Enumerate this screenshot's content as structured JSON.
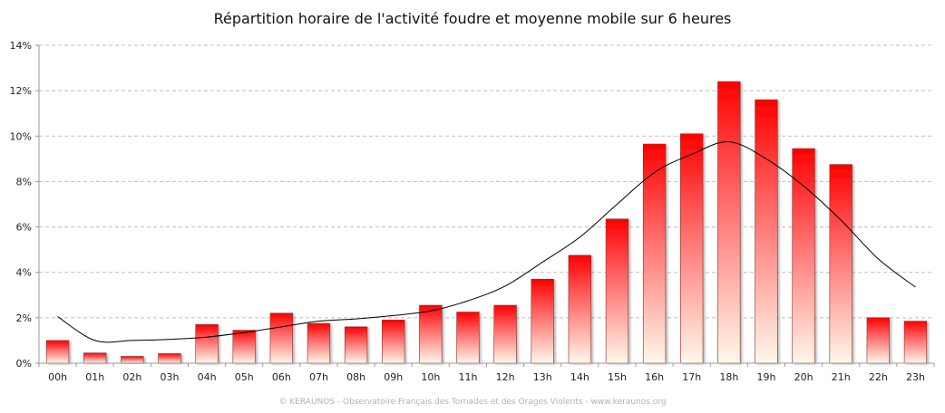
{
  "chart_data": {
    "type": "bar",
    "title": "Répartition horaire de l'activité foudre et moyenne mobile sur 6 heures",
    "xlabel": "",
    "ylabel": "",
    "categories": [
      "00h",
      "01h",
      "02h",
      "03h",
      "04h",
      "05h",
      "06h",
      "07h",
      "08h",
      "09h",
      "10h",
      "11h",
      "12h",
      "13h",
      "14h",
      "15h",
      "16h",
      "17h",
      "18h",
      "19h",
      "20h",
      "21h",
      "22h",
      "23h"
    ],
    "series": [
      {
        "type": "bar",
        "values": [
          1.0,
          0.45,
          0.3,
          0.42,
          1.7,
          1.45,
          2.2,
          1.75,
          1.6,
          1.9,
          2.55,
          2.25,
          2.55,
          3.7,
          4.75,
          6.35,
          9.65,
          10.1,
          12.4,
          11.6,
          9.45,
          8.75,
          2.0,
          1.85
        ]
      },
      {
        "type": "line",
        "values": [
          2.05,
          1.0,
          1.0,
          1.05,
          1.15,
          1.35,
          1.6,
          1.85,
          1.95,
          2.1,
          2.3,
          2.75,
          3.4,
          4.45,
          5.55,
          7.0,
          8.4,
          9.2,
          9.75,
          9.0,
          7.8,
          6.3,
          4.6,
          3.35
        ]
      }
    ],
    "ylim": [
      0,
      14
    ],
    "yticks": [
      0,
      2,
      4,
      6,
      8,
      10,
      12,
      14
    ],
    "ytick_labels": [
      "0%",
      "2%",
      "4%",
      "6%",
      "8%",
      "10%",
      "12%",
      "14%"
    ],
    "grid": true,
    "legend": "none",
    "colors": {
      "bar_top": "#ff0000",
      "bar_bottom": "#fff8ea",
      "grid": "#bfbfbf",
      "axis": "#999999",
      "line": "#000000"
    }
  },
  "footer": {
    "credit": "© KERAUNOS - Observatoire Français des Tornades et des Orages Violents - www.keraunos.org"
  }
}
